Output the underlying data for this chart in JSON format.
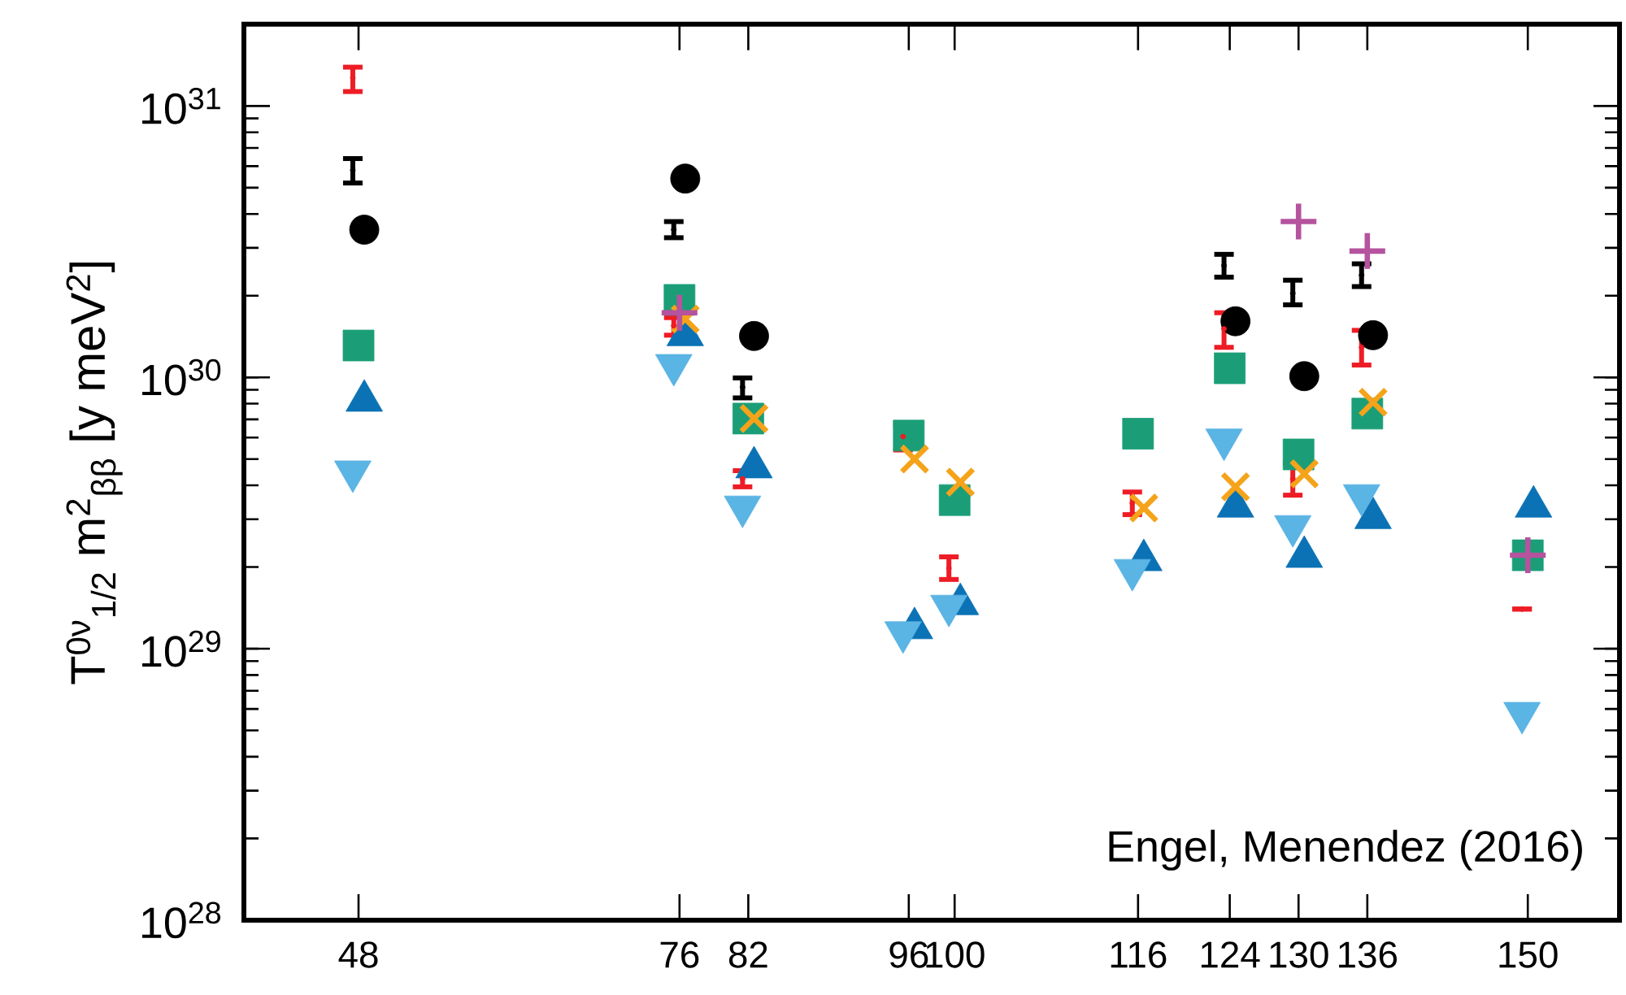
{
  "chart_data": {
    "type": "scatter",
    "ylabel": "T$^{0ν}$$_{1/2}$ m$^{2}$$_{ββ}$ [y meV$^{2}$]",
    "annotations": [
      "Engel, Menendez (2016)"
    ],
    "log": "y",
    "xlim": [
      38,
      158
    ],
    "ylim": [
      1e+28,
      2e+31
    ],
    "xticks": [
      48,
      76,
      82,
      96,
      100,
      116,
      124,
      130,
      136,
      150
    ],
    "yticks": [
      {
        "value": 1e+28,
        "label": "10$^{28}$"
      },
      {
        "value": 1e+29,
        "label": "10$^{29}$"
      },
      {
        "value": 1e+30,
        "label": "10$^{30}$"
      },
      {
        "value": 1e+31,
        "label": "10$^{31}$"
      }
    ],
    "series": [
      {
        "color": "#ee1c25",
        "x": [
          47.5,
          75.5,
          81.5,
          95.5,
          99.5,
          115.5,
          123.5,
          129.5,
          135.5,
          149.5
        ],
        "values": [
          1.27e+31,
          1.55e+30,
          4.23e+29,
          6.05e+29,
          1.98e+29,
          3.44e+29,
          1.51e+30,
          4.23e+29,
          1.29e+30,
          1.4e+29
        ],
        "errors": [
          [
            1.13e+31,
            1.39e+31
          ],
          [
            1.43e+30,
            1.66e+30
          ],
          [
            3.95e+29,
            4.53e+29
          ],
          [
            5.4e+29,
            6.7e+29
          ],
          [
            1.8e+29,
            2.18e+29
          ],
          [
            3.12e+29,
            3.78e+29
          ],
          [
            1.29e+30,
            1.73e+30
          ],
          [
            3.68e+29,
            4.85e+29
          ],
          [
            1.11e+30,
            1.49e+30
          ],
          [
            1.4e+29,
            1.4e+29
          ]
        ]
      },
      {
        "color": "#000000",
        "x": [
          47.5,
          75.5,
          81.5,
          123.5,
          129.5,
          135.5
        ],
        "values": [
          5.8e+30,
          3.5e+30,
          9.2e+29,
          2.58e+30,
          2.04e+30,
          2.38e+30
        ],
        "errors": [
          [
            5.2e+30,
            6.4e+30
          ],
          [
            3.27e+30,
            3.75e+30
          ],
          [
            8.4e+29,
            9.95e+29
          ],
          [
            2.34e+30,
            2.84e+30
          ],
          [
            1.85e+30,
            2.28e+30
          ],
          [
            2.16e+30,
            2.62e+30
          ]
        ]
      },
      {
        "marker": "circle",
        "color": "#000000",
        "x": [
          48.5,
          76.5,
          82.5,
          124.5,
          130.5,
          136.5
        ],
        "values": [
          3.5e+30,
          5.4e+30,
          1.42e+30,
          1.61e+30,
          1.01e+30,
          1.43e+30
        ]
      },
      {
        "marker": "square",
        "color": "#1b9e77",
        "x": [
          48,
          76,
          82,
          96,
          100,
          116,
          124,
          130,
          136,
          150
        ],
        "values": [
          1.31e+30,
          1.93e+30,
          7.05e+29,
          6.1e+29,
          3.53e+29,
          6.2e+29,
          1.08e+30,
          5.2e+29,
          7.35e+29,
          2.21e+29
        ]
      },
      {
        "marker": "triangle",
        "color": "#0b72b5",
        "x": [
          48.5,
          76.5,
          82.5,
          96.5,
          100.5,
          116.5,
          124.5,
          130.5,
          136.5,
          150.5
        ],
        "values": [
          8.2e+29,
          1.43e+30,
          4.66e+29,
          1.19e+29,
          1.46e+29,
          2.12e+29,
          3.34e+29,
          2.18e+29,
          3.03e+29,
          3.34e+29
        ]
      },
      {
        "marker": "triangle-down",
        "color": "#5ab4e4",
        "x": [
          47.5,
          75.5,
          81.5,
          95.5,
          99.5,
          115.5,
          123.5,
          129.5,
          135.5,
          149.5
        ],
        "values": [
          4.5e+29,
          1.11e+30,
          3.34e+29,
          1.15e+29,
          1.44e+29,
          1.95e+29,
          5.9e+29,
          2.83e+29,
          3.68e+29,
          5.8e+28
        ]
      },
      {
        "marker": "cross",
        "color": "#f5a31a",
        "x": [
          76.5,
          82.5,
          96.5,
          100.5,
          116.5,
          124.5,
          130.5,
          136.5
        ],
        "values": [
          1.64e+30,
          7.05e+29,
          5e+29,
          4.11e+29,
          3.3e+29,
          3.95e+29,
          4.41e+29,
          8.1e+29
        ]
      },
      {
        "marker": "plus",
        "color": "#b5539f",
        "x": [
          76,
          130,
          136,
          150
        ],
        "values": [
          1.73e+30,
          3.75e+30,
          2.92e+30,
          2.21e+29
        ]
      }
    ]
  }
}
